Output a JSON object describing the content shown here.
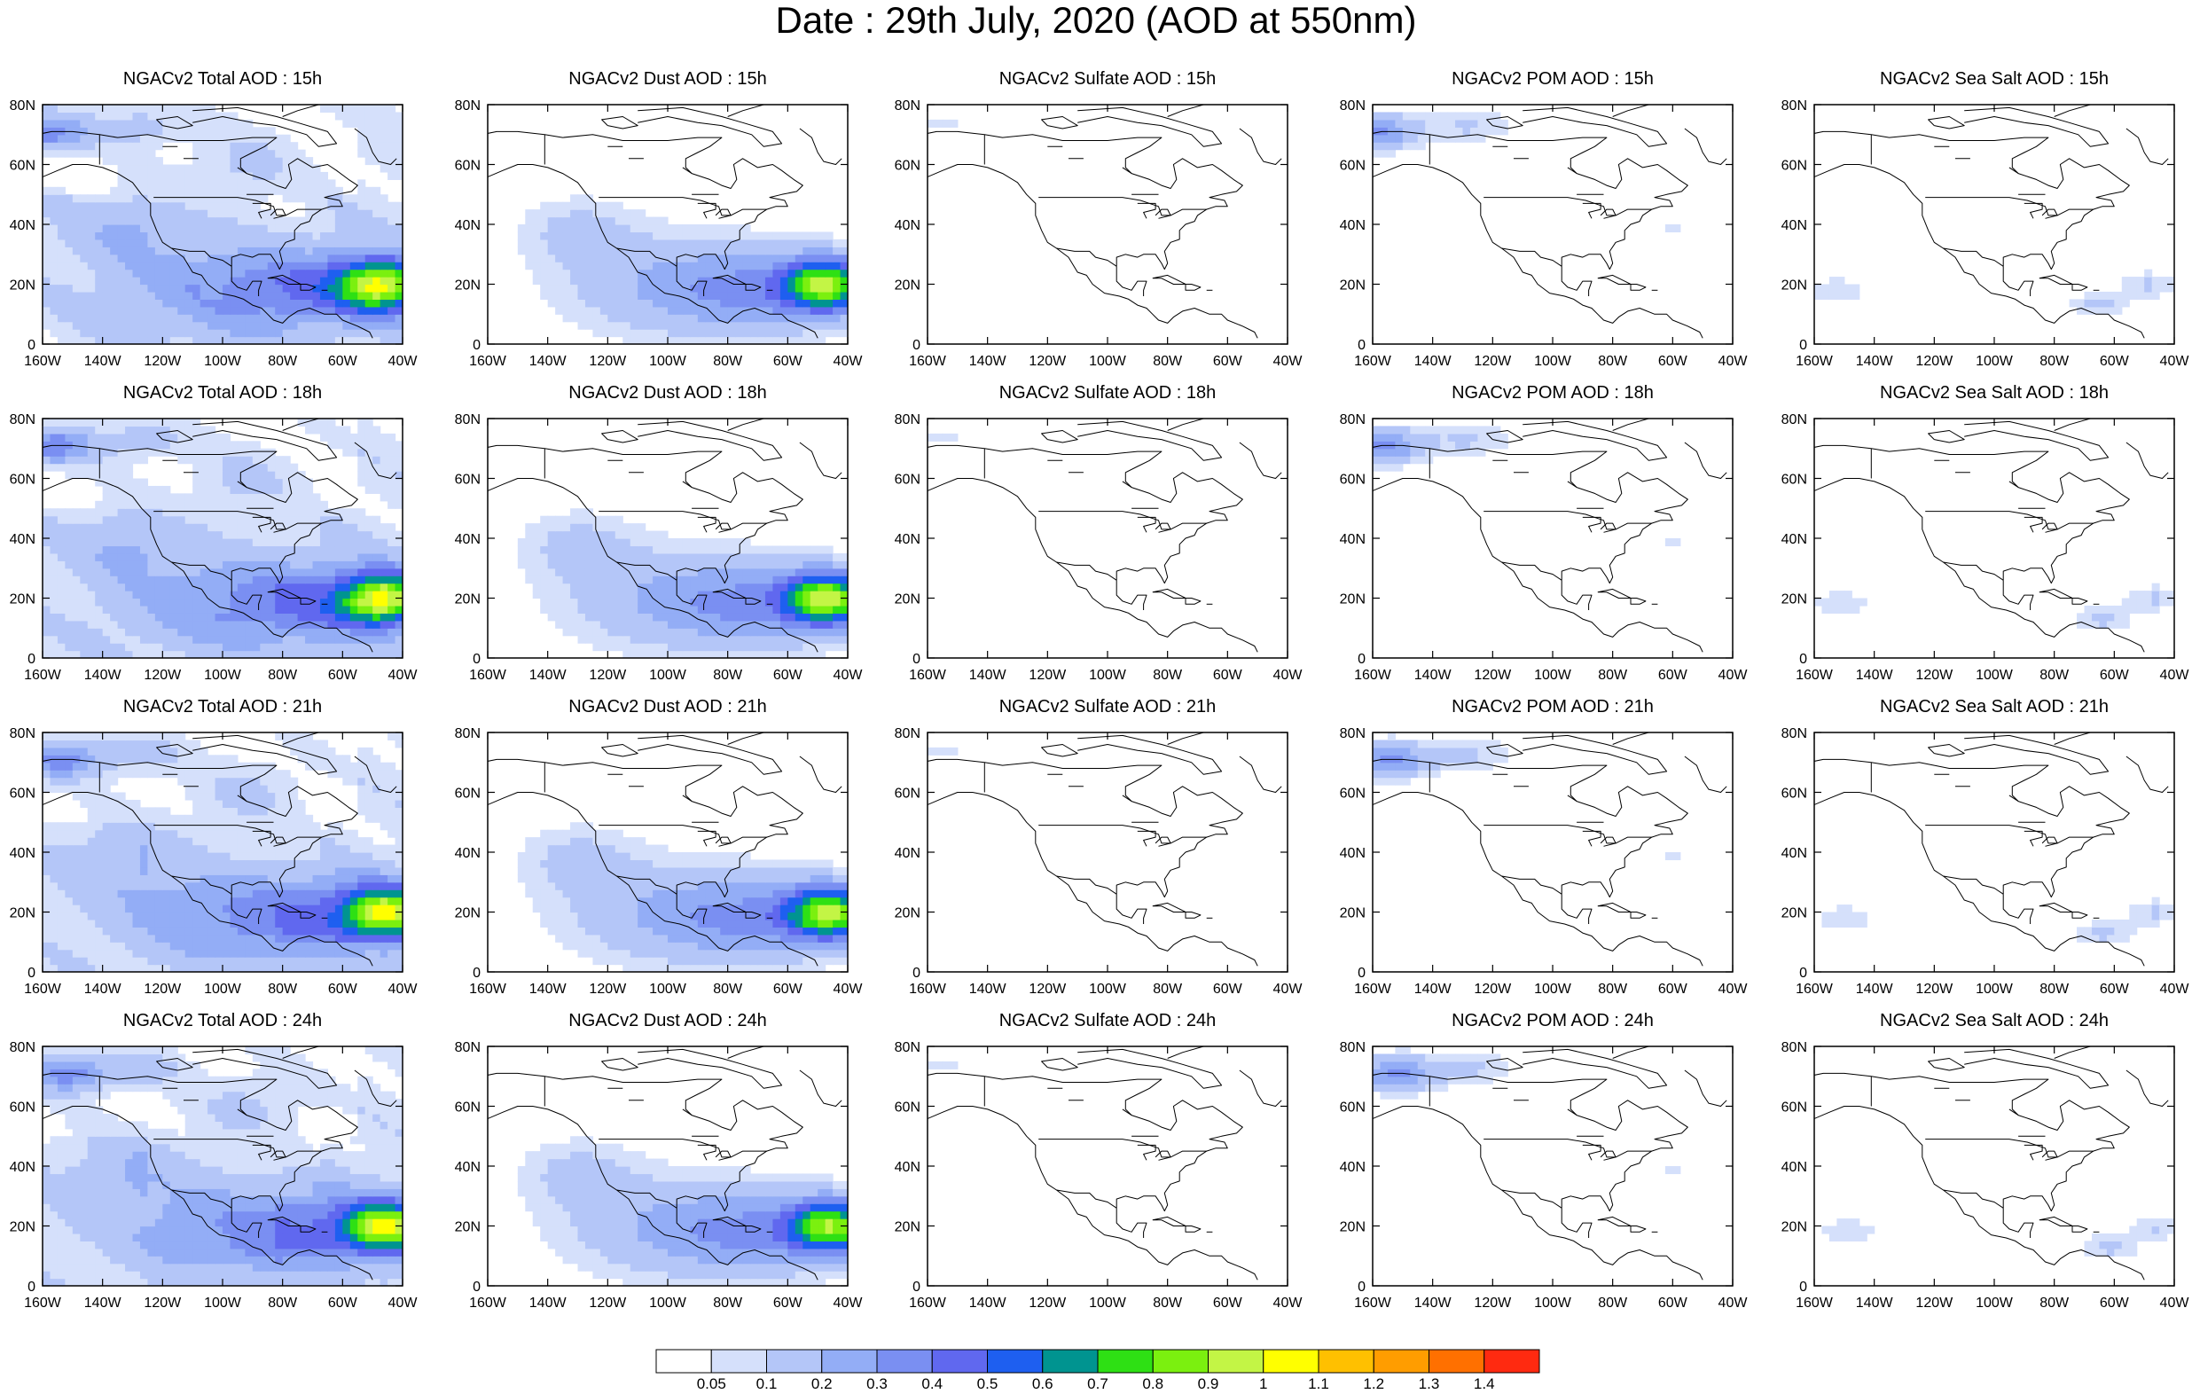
{
  "title": "Date : 29th July, 2020 (AOD at 550nm)",
  "panel_titles": [
    [
      "NGACv2 Total AOD : 15h",
      "NGACv2 Dust AOD : 15h",
      "NGACv2 Sulfate AOD : 15h",
      "NGACv2 POM AOD : 15h",
      "NGACv2 Sea Salt AOD : 15h"
    ],
    [
      "NGACv2 Total AOD : 18h",
      "NGACv2 Dust AOD : 18h",
      "NGACv2 Sulfate AOD : 18h",
      "NGACv2 POM AOD : 18h",
      "NGACv2 Sea Salt AOD : 18h"
    ],
    [
      "NGACv2 Total AOD : 21h",
      "NGACv2 Dust AOD : 21h",
      "NGACv2 Sulfate AOD : 21h",
      "NGACv2 POM AOD : 21h",
      "NGACv2 Sea Salt AOD : 21h"
    ],
    [
      "NGACv2 Total AOD : 24h",
      "NGACv2 Dust AOD : 24h",
      "NGACv2 Sulfate AOD : 24h",
      "NGACv2 POM AOD : 24h",
      "NGACv2 Sea Salt  AOD : 24h"
    ]
  ],
  "map_extent": {
    "lon": [
      -160,
      -40
    ],
    "lat": [
      0,
      80
    ]
  },
  "x_ticks": [
    "160W",
    "140W",
    "120W",
    "100W",
    "80W",
    "60W",
    "40W"
  ],
  "y_ticks": [
    "0",
    "20N",
    "40N",
    "60N",
    "80N"
  ],
  "colorbar": {
    "labels": [
      "0.05",
      "0.1",
      "0.2",
      "0.3",
      "0.4",
      "0.5",
      "0.6",
      "0.7",
      "0.8",
      "0.9",
      "1",
      "1.1",
      "1.2",
      "1.3",
      "1.4"
    ],
    "colors": [
      "#ffffff",
      "#d5e0fb",
      "#b4c6f8",
      "#93adf6",
      "#7a8ff2",
      "#6068ef",
      "#1e5ff0",
      "#009490",
      "#2ee014",
      "#7bf00f",
      "#c3f545",
      "#ffff00",
      "#ffc000",
      "#ff9d00",
      "#ff7000",
      "#ff2a10"
    ]
  },
  "aod_fields": {
    "total_base": 0.07,
    "dust": {
      "center": [
        -47,
        20
      ],
      "extent": [
        -155,
        -40,
        0,
        45
      ],
      "timesteps": [
        {
          "hour": "15h",
          "peak": 0.82
        },
        {
          "hour": "18h",
          "peak": 0.85
        },
        {
          "hour": "21h",
          "peak": 0.83
        },
        {
          "hour": "24h",
          "peak": 0.8
        }
      ]
    },
    "pom_plume": {
      "center": [
        -158,
        71
      ],
      "peak": 0.32
    },
    "sea_salt_patches": [
      {
        "center": [
          -65,
          13
        ],
        "peak": 0.12
      },
      {
        "center": [
          -48,
          20
        ],
        "peak": 0.11
      },
      {
        "center": [
          -152,
          18
        ],
        "peak": 0.1
      }
    ]
  }
}
